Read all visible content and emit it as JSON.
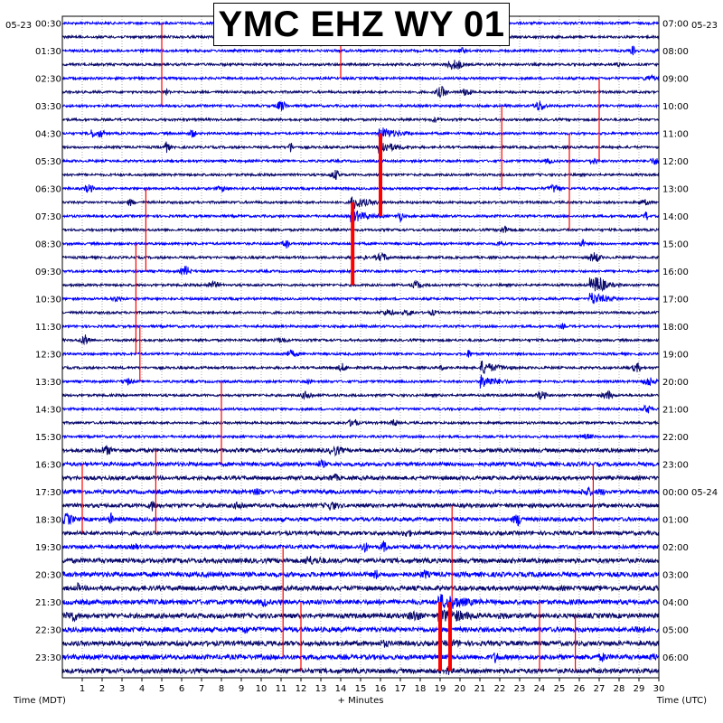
{
  "chart_data": {
    "type": "helicorder",
    "title": "YMC EHZ WY 01",
    "date_left": "05-23",
    "date_right": "05-23",
    "xlabel": "+ Minutes",
    "xlabel_left": "Time (MDT)",
    "xlabel_right": "Time (UTC)",
    "x_range": [
      0,
      30
    ],
    "x_ticks": [
      1,
      2,
      3,
      4,
      5,
      6,
      7,
      8,
      9,
      10,
      11,
      12,
      13,
      14,
      15,
      16,
      17,
      18,
      19,
      20,
      21,
      22,
      23,
      24,
      25,
      26,
      27,
      28,
      29,
      30
    ],
    "left_time_labels": [
      "00:30",
      "01:30",
      "02:30",
      "03:30",
      "04:30",
      "05:30",
      "06:30",
      "07:30",
      "08:30",
      "09:30",
      "10:30",
      "11:30",
      "12:30",
      "13:30",
      "14:30",
      "15:30",
      "16:30",
      "17:30",
      "18:30",
      "19:30",
      "20:30",
      "21:30",
      "22:30",
      "23:30"
    ],
    "right_time_labels": [
      "07:00",
      "08:00",
      "09:00",
      "10:00",
      "11:00",
      "12:00",
      "13:00",
      "14:00",
      "15:00",
      "16:00",
      "17:00",
      "18:00",
      "19:00",
      "20:00",
      "21:00",
      "22:00",
      "23:00",
      "00:00 05-24",
      "01:00",
      "02:00",
      "03:00",
      "04:00",
      "05:00",
      "06:00"
    ],
    "trace_colors": [
      "#0000ff",
      "#0a0a6e"
    ],
    "clip_color": "#ff0000",
    "trace_count": 48,
    "grid": true,
    "events": [
      {
        "minute": 14.6,
        "first_trace": 13,
        "last_trace": 19
      },
      {
        "minute": 16.0,
        "first_trace": 8,
        "last_trace": 14
      },
      {
        "minute": 19.0,
        "first_trace": 42,
        "last_trace": 47
      },
      {
        "minute": 19.5,
        "first_trace": 42,
        "last_trace": 47
      },
      {
        "minute": 21.1,
        "first_trace": 25,
        "last_trace": 26
      },
      {
        "minute": 26.6,
        "first_trace": 19,
        "last_trace": 21
      }
    ]
  }
}
